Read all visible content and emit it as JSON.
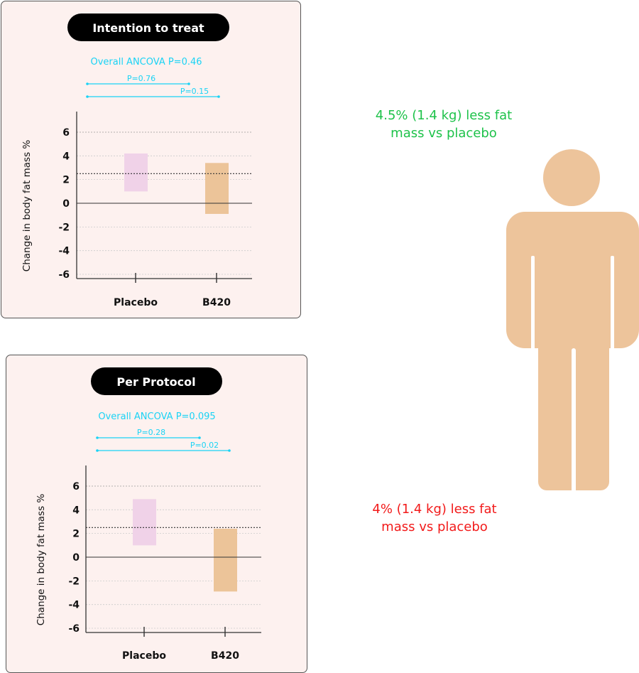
{
  "colors": {
    "cyan": "#1ad3f5",
    "placebo": "#f0d2e8",
    "b420": "#ecc499",
    "green": "#1ec24a",
    "red": "#f21a1a",
    "figure": "#edc49b",
    "badge": "#000000"
  },
  "chart_data": [
    {
      "type": "bar",
      "title": "Intention to treat",
      "ylabel": "Change in body fat mass %",
      "ylim": [
        -6.4,
        7.7
      ],
      "yticks": [
        "6",
        "4",
        "2",
        "0",
        "-2",
        "-4",
        "-6"
      ],
      "grid": true,
      "categories": [
        "Placebo",
        "B420"
      ],
      "ranges": [
        [
          1.0,
          4.2
        ],
        [
          -0.9,
          3.4
        ]
      ],
      "reference_line": 2.5,
      "overall": "Overall ANCOVA P=0.46",
      "comparisons": [
        {
          "label": "P=0.76"
        },
        {
          "label": "P=0.15"
        }
      ]
    },
    {
      "type": "bar",
      "title": "Per Protocol",
      "ylabel": "Change in body fat mass %",
      "ylim": [
        -6.4,
        7.7
      ],
      "yticks": [
        "6",
        "4",
        "2",
        "0",
        "-2",
        "-4",
        "-6"
      ],
      "grid": true,
      "categories": [
        "Placebo",
        "B420"
      ],
      "ranges": [
        [
          1.0,
          4.9
        ],
        [
          -2.9,
          2.4
        ]
      ],
      "reference_line": 2.5,
      "overall": "Overall ANCOVA P=0.095",
      "comparisons": [
        {
          "label": "P=0.28"
        },
        {
          "label": "P=0.02"
        }
      ]
    }
  ],
  "callouts": {
    "itt": [
      "4.5% (1.4 kg) less fat",
      "mass vs placebo"
    ],
    "pp": [
      "4% (1.4 kg) less fat",
      "mass vs placebo"
    ]
  },
  "figure_icon": "person-silhouette-icon"
}
